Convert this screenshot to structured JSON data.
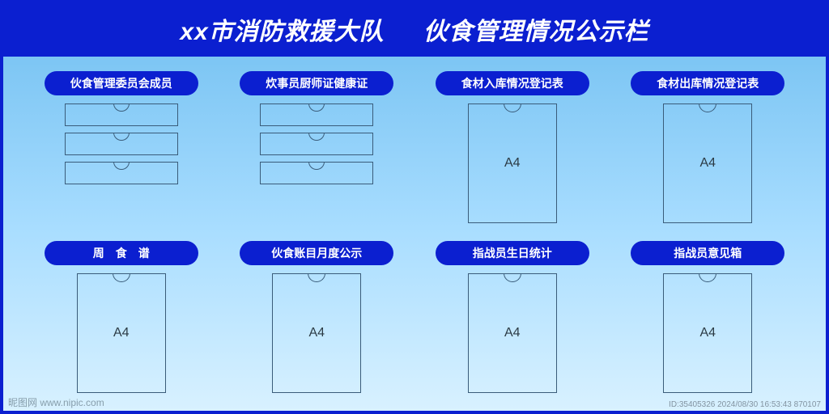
{
  "header": {
    "left": "xx市消防救援大队",
    "right": "伙食管理情况公示栏"
  },
  "colors": {
    "brand_blue": "#0b1fd0",
    "bg_top": "#6fbef0",
    "bg_mid": "#a8ddff",
    "bg_bottom": "#d8f1ff",
    "slot_border": "#3a5c7a"
  },
  "sections": {
    "r1c1": {
      "title": "伙食管理委员会成员",
      "kind": "small3"
    },
    "r1c2": {
      "title": "炊事员厨师证健康证",
      "kind": "small3"
    },
    "r1c3": {
      "title": "食材入库情况登记表",
      "kind": "a4",
      "label": "A4"
    },
    "r1c4": {
      "title": "食材出库情况登记表",
      "kind": "a4",
      "label": "A4"
    },
    "r2c1": {
      "title": "周　食　谱",
      "kind": "a4",
      "label": "A4"
    },
    "r2c2": {
      "title": "伙食账目月度公示",
      "kind": "a4",
      "label": "A4"
    },
    "r2c3": {
      "title": "指战员生日统计",
      "kind": "a4",
      "label": "A4"
    },
    "r2c4": {
      "title": "指战员意见箱",
      "kind": "a4",
      "label": "A4"
    }
  },
  "watermark": "昵图网 www.nipic.com",
  "meta": "ID:35405326  2024/08/30 16:53:43 870107"
}
